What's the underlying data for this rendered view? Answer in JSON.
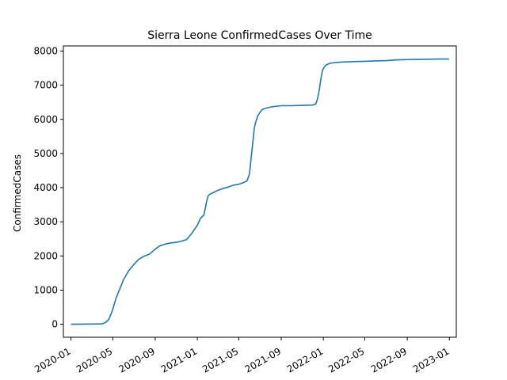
{
  "chart_data": {
    "type": "line",
    "title": "Sierra Leone  ConfirmedCases Over Time",
    "xlabel": "",
    "ylabel": "ConfirmedCases",
    "xlim": [
      "2019-12-10",
      "2023-01-21"
    ],
    "ylim": [
      -380,
      8150
    ],
    "grid": false,
    "x_ticks": [
      "2020-01",
      "2020-05",
      "2020-09",
      "2021-01",
      "2021-05",
      "2021-09",
      "2022-01",
      "2022-05",
      "2022-09",
      "2023-01"
    ],
    "y_ticks": [
      0,
      1000,
      2000,
      3000,
      4000,
      5000,
      6000,
      7000,
      8000
    ],
    "series": [
      {
        "color": "#1f77b4",
        "x": [
          "2020-01-01",
          "2020-03-30",
          "2020-04-10",
          "2020-04-20",
          "2020-04-30",
          "2020-05-10",
          "2020-05-20",
          "2020-06-01",
          "2020-06-15",
          "2020-07-01",
          "2020-07-15",
          "2020-08-01",
          "2020-08-15",
          "2020-09-01",
          "2020-09-15",
          "2020-10-01",
          "2020-10-15",
          "2020-11-01",
          "2020-11-15",
          "2020-12-01",
          "2020-12-15",
          "2021-01-01",
          "2021-01-10",
          "2021-01-20",
          "2021-01-28",
          "2021-02-01",
          "2021-02-05",
          "2021-02-15",
          "2021-03-01",
          "2021-03-15",
          "2021-04-01",
          "2021-04-15",
          "2021-05-01",
          "2021-05-15",
          "2021-05-25",
          "2021-06-01",
          "2021-06-05",
          "2021-06-10",
          "2021-06-15",
          "2021-06-20",
          "2021-06-25",
          "2021-07-01",
          "2021-07-05",
          "2021-07-10",
          "2021-07-20",
          "2021-08-01",
          "2021-08-15",
          "2021-09-01",
          "2021-10-01",
          "2021-11-01",
          "2021-12-01",
          "2021-12-10",
          "2021-12-15",
          "2021-12-20",
          "2021-12-25",
          "2021-12-30",
          "2022-01-05",
          "2022-01-10",
          "2022-01-20",
          "2022-02-01",
          "2022-02-15",
          "2022-03-01",
          "2022-04-01",
          "2022-05-01",
          "2022-06-01",
          "2022-07-01",
          "2022-08-01",
          "2022-09-01",
          "2022-10-01",
          "2022-11-01",
          "2022-12-01",
          "2022-12-31"
        ],
        "y": [
          0,
          10,
          50,
          150,
          400,
          750,
          1000,
          1300,
          1550,
          1750,
          1900,
          2000,
          2050,
          2200,
          2300,
          2350,
          2380,
          2400,
          2430,
          2480,
          2650,
          2900,
          3100,
          3200,
          3600,
          3750,
          3800,
          3850,
          3920,
          3970,
          4020,
          4070,
          4100,
          4150,
          4200,
          4400,
          4800,
          5250,
          5750,
          5950,
          6100,
          6200,
          6250,
          6300,
          6330,
          6360,
          6380,
          6400,
          6400,
          6410,
          6420,
          6450,
          6600,
          6850,
          7200,
          7450,
          7550,
          7600,
          7640,
          7660,
          7670,
          7680,
          7690,
          7700,
          7710,
          7720,
          7740,
          7750,
          7755,
          7760,
          7765,
          7765
        ]
      }
    ]
  }
}
